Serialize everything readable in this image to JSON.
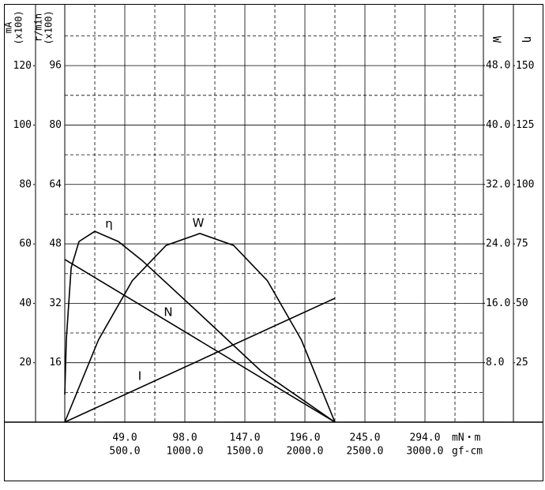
{
  "chart_data": {
    "type": "line",
    "x_unit": "mN・m",
    "x2_unit": "gf-cm",
    "xlim": [
      0,
      341.7
    ],
    "x2lim": [
      0,
      3486.7
    ],
    "xticks": [
      {
        "value": 49,
        "label": "49.0"
      },
      {
        "value": 98,
        "label": "98.0"
      },
      {
        "value": 147,
        "label": "147.0"
      },
      {
        "value": 196,
        "label": "196.0"
      },
      {
        "value": 245,
        "label": "245.0"
      },
      {
        "value": 294,
        "label": "294.0"
      }
    ],
    "x2ticks": [
      {
        "value": 500,
        "label": "500.0"
      },
      {
        "value": 1000,
        "label": "1000.0"
      },
      {
        "value": 1500,
        "label": "1500.0"
      },
      {
        "value": 2000,
        "label": "2000.0"
      },
      {
        "value": 2500,
        "label": "2500.0"
      },
      {
        "value": 3000,
        "label": "3000.0"
      }
    ],
    "axes": [
      {
        "label": "mA",
        "sublabel": "(x100)",
        "lim": [
          0,
          140.8
        ],
        "ticks": [
          20,
          40,
          60,
          80,
          100,
          120
        ]
      },
      {
        "label": "r/min",
        "sublabel": "(x100)",
        "lim": [
          0,
          112.6
        ],
        "ticks": [
          16,
          32,
          48,
          64,
          80,
          96
        ]
      },
      {
        "label": "W",
        "lim": [
          0,
          56.3
        ],
        "ticks": [
          {
            "value": 8,
            "label": "8.0"
          },
          {
            "value": 16,
            "label": "16.0"
          },
          {
            "value": 24,
            "label": "24.0"
          },
          {
            "value": 32,
            "label": "32.0"
          },
          {
            "value": 40,
            "label": "40.0"
          },
          {
            "value": 48,
            "label": "48.0"
          }
        ]
      },
      {
        "label": "η",
        "lim": [
          0,
          176
        ],
        "ticks": [
          25,
          50,
          75,
          100,
          125,
          150
        ]
      }
    ],
    "grid": true,
    "series": [
      {
        "name": "I",
        "axis": 0,
        "color": "#000000",
        "x": [
          0,
          220.5
        ],
        "values": [
          0,
          41.7
        ]
      },
      {
        "name": "N",
        "axis": 1,
        "color": "#000000",
        "x": [
          0,
          220.5
        ],
        "values": [
          43.8,
          0
        ]
      },
      {
        "name": "W",
        "axis": 2,
        "color": "#000000",
        "x": [
          0,
          27.6,
          55.1,
          82.7,
          110.3,
          137.8,
          165.4,
          193,
          220.5
        ],
        "values": [
          0,
          11.1,
          19.05,
          23.8,
          25.4,
          23.8,
          19.05,
          11.1,
          0
        ]
      },
      {
        "name": "η",
        "axis": 3,
        "color": "#000000",
        "x": [
          0,
          1.3,
          5.2,
          11.6,
          24.5,
          43.8,
          63.2,
          108.3,
          160,
          220.5
        ],
        "values": [
          11.6,
          35,
          65,
          76,
          80.3,
          76,
          68,
          46.5,
          21.6,
          0
        ]
      }
    ]
  }
}
